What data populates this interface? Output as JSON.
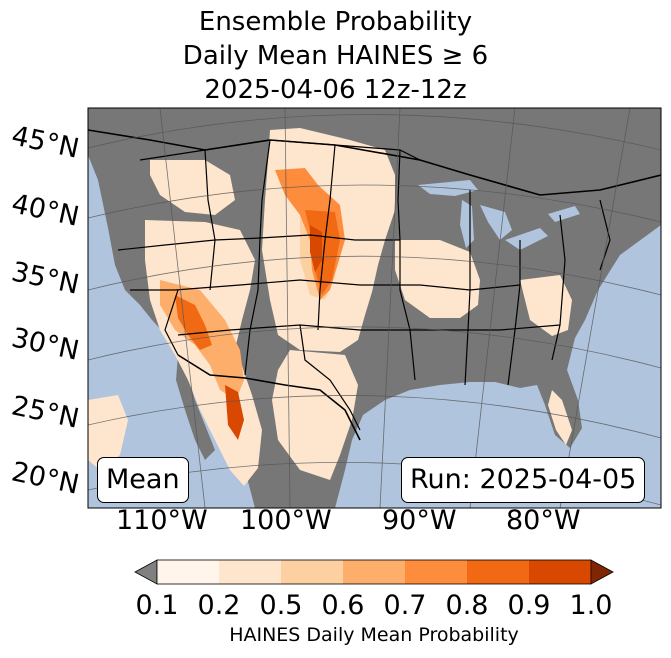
{
  "title": {
    "line1": "Ensemble Probability",
    "line2": "Daily Mean HAINES ≥ 6",
    "line3": "2025-04-06 12z-12z"
  },
  "map": {
    "colors": {
      "ocean": "#b0c4de",
      "land": "#777777",
      "border": "#000000",
      "grid": "#555555"
    },
    "lat_labels": [
      "45°N",
      "40°N",
      "35°N",
      "30°N",
      "25°N",
      "20°N"
    ],
    "lon_labels": [
      "110°W",
      "100°W",
      "90°W",
      "80°W"
    ]
  },
  "annotations": {
    "mean_label": "Mean",
    "run_label": "Run: 2025-04-05"
  },
  "colorbar": {
    "label": "HAINES Daily Mean Probability",
    "ticks": [
      "0.1",
      "0.2",
      "0.5",
      "0.6",
      "0.7",
      "0.8",
      "0.9",
      "1.0"
    ],
    "colors": [
      "#fff5eb",
      "#fee6ce",
      "#fdd0a2",
      "#fdae6b",
      "#fd8d3c",
      "#f16913",
      "#d94801",
      "#a63603"
    ],
    "under_color": "#808080",
    "over_color": "#7f2704"
  }
}
